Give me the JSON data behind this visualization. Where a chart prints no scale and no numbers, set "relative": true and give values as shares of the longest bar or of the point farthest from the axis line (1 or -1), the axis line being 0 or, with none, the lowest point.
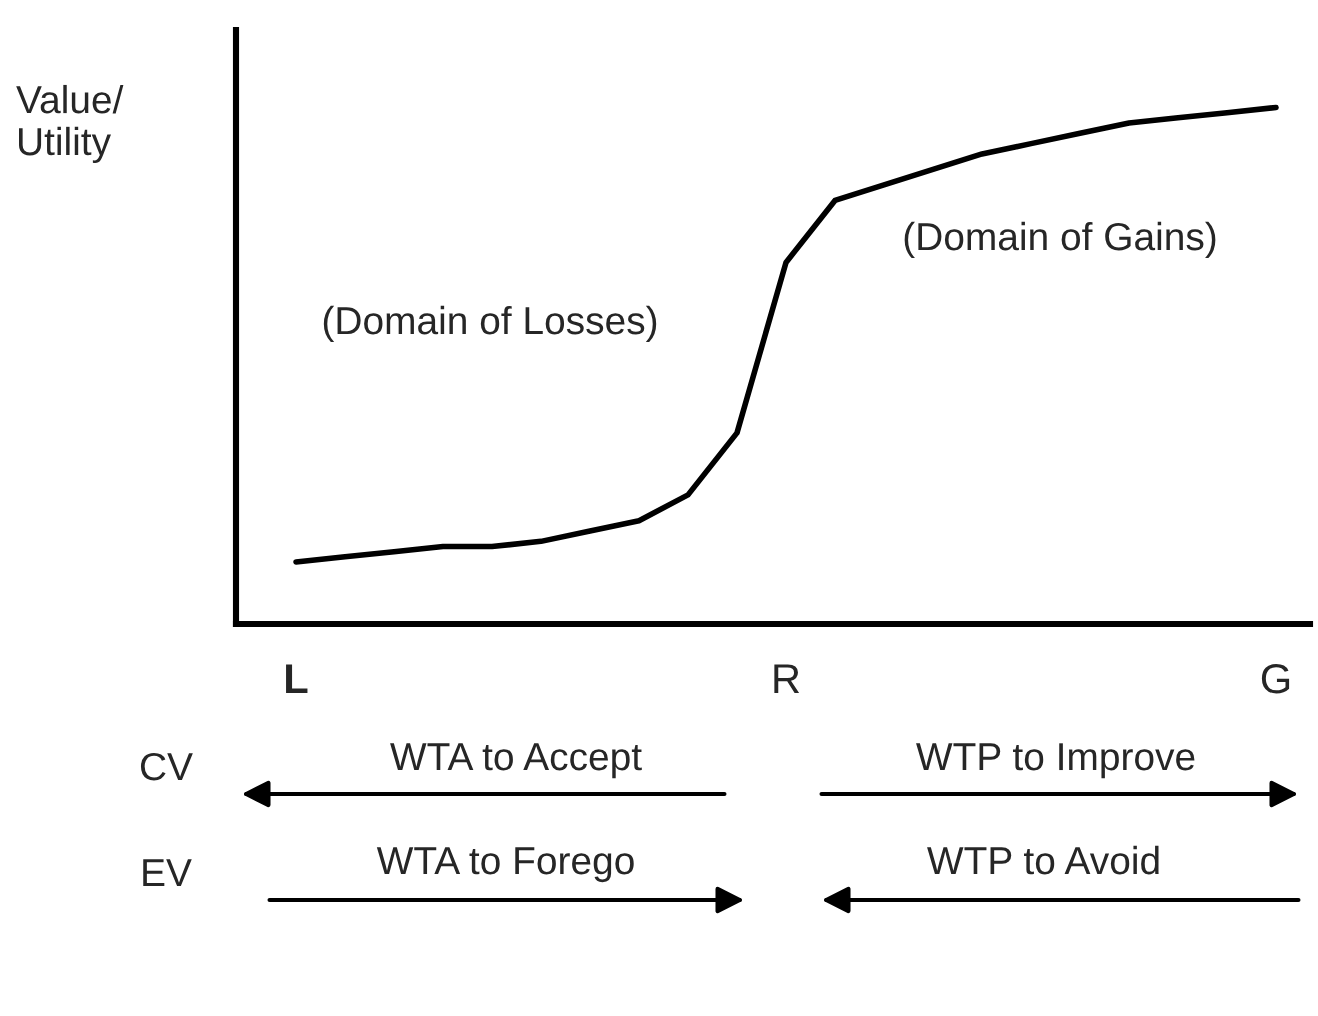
{
  "chart_data": {
    "type": "line",
    "relative": true,
    "ylabel": "Value/\nUtility",
    "categories": [
      "L",
      null,
      null,
      null,
      null,
      null,
      null,
      null,
      null,
      null,
      "R",
      null,
      null,
      null,
      null,
      null,
      null,
      null,
      null,
      null,
      "G"
    ],
    "series": [
      {
        "color": "#000000",
        "values": [
          0.12,
          0.13,
          0.14,
          0.15,
          0.15,
          0.16,
          0.18,
          0.2,
          0.25,
          0.37,
          0.7,
          0.82,
          0.85,
          0.88,
          0.91,
          0.93,
          0.95,
          0.97,
          0.98,
          0.99,
          1.0
        ]
      }
    ],
    "annotations": [
      "(Domain of Losses)",
      "(Domain of Gains)",
      "CV",
      "WTA to Accept",
      "WTP to Improve",
      "EV",
      "WTA to Forego",
      "WTP to Avoid"
    ],
    "grid": false,
    "legend": false,
    "marker": "none",
    "line_style": "solid"
  }
}
